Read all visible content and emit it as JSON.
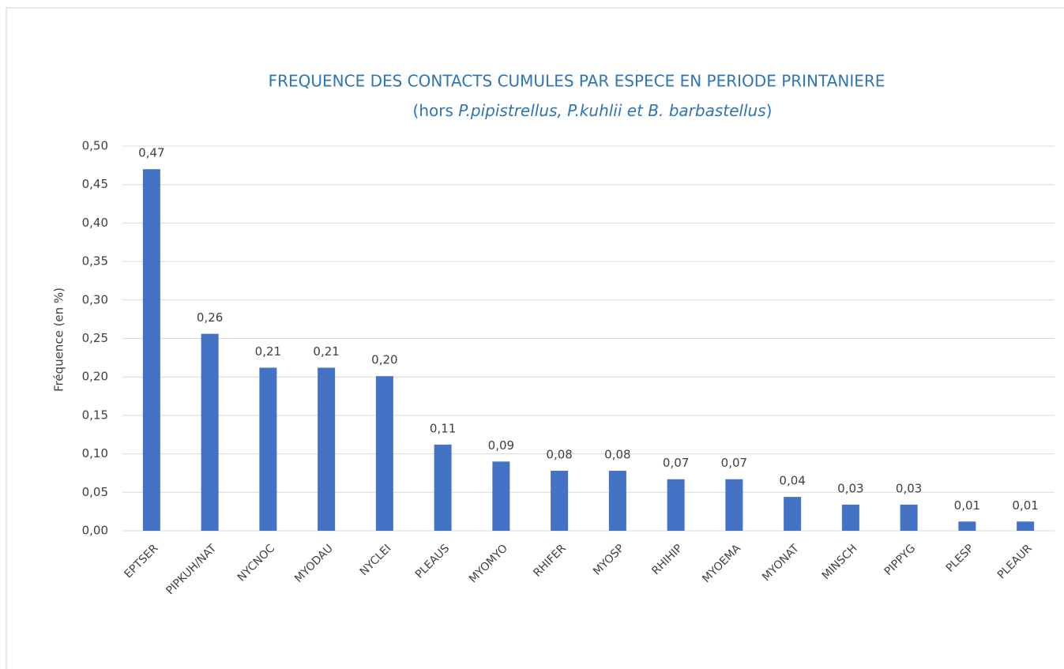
{
  "chart_data": {
    "type": "bar",
    "title": "FREQUENCE DES CONTACTS CUMULES PAR ESPECE EN PERIODE PRINTANIERE",
    "subtitle": [
      {
        "text": "(hors ",
        "italic": false
      },
      {
        "text": "P.pipistrellus, P.kuhlii",
        "italic": true
      },
      {
        "text": " ",
        "italic": false
      },
      {
        "text": "et B. barbastellus",
        "italic": true
      },
      {
        "text": ")",
        "italic": false
      }
    ],
    "y_label": "Fréquence (en %)",
    "categories": [
      "EPTSER",
      "PIPKUH/NAT",
      "NYCNOC",
      "MYODAU",
      "NYCLEI",
      "PLEAUS",
      "MYOMYO",
      "RHIFER",
      "MYOSP",
      "RHIHIP",
      "MYOEMA",
      "MYONAT",
      "MINSCH",
      "PIPPYG",
      "PLESP",
      "PLEAUR"
    ],
    "values": [
      0.47,
      0.256,
      0.212,
      0.212,
      0.201,
      0.112,
      0.09,
      0.078,
      0.078,
      0.067,
      0.067,
      0.044,
      0.034,
      0.034,
      0.012,
      0.012
    ],
    "value_labels": [
      "0,47",
      "0,26",
      "0,21",
      "0,21",
      "0,20",
      "0,11",
      "0,09",
      "0,08",
      "0,08",
      "0,07",
      "0,07",
      "0,04",
      "0,03",
      "0,03",
      "0,01",
      "0,01"
    ],
    "color": "#4472c4",
    "ylim": [
      0,
      0.5
    ],
    "yticks": [
      {
        "value": 0,
        "label": "0,00"
      },
      {
        "value": 0.05,
        "label": "0,05"
      },
      {
        "value": 0.1,
        "label": "0,10"
      },
      {
        "value": 0.15,
        "label": "0,15"
      },
      {
        "value": 0.2,
        "label": "0,20"
      },
      {
        "value": 0.25,
        "label": "0,25"
      },
      {
        "value": 0.3,
        "label": "0,30"
      },
      {
        "value": 0.35,
        "label": "0,35"
      },
      {
        "value": 0.4,
        "label": "0,40"
      },
      {
        "value": 0.45,
        "label": "0,45"
      },
      {
        "value": 0.5,
        "label": "0,50"
      }
    ],
    "grid": true
  }
}
